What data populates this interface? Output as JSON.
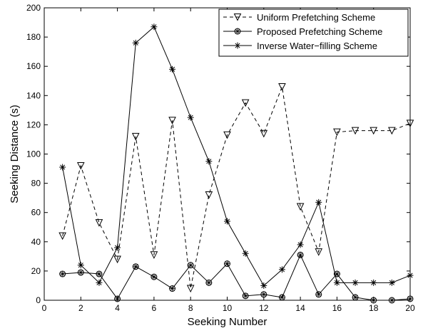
{
  "chart_data": {
    "type": "line",
    "title": "",
    "xlabel": "Seeking Number",
    "ylabel": "Seeking Distance (s)",
    "xlim": [
      0,
      20
    ],
    "ylim": [
      0,
      200
    ],
    "xticks": [
      0,
      2,
      4,
      6,
      8,
      10,
      12,
      14,
      16,
      18,
      20
    ],
    "yticks": [
      0,
      20,
      40,
      60,
      80,
      100,
      120,
      140,
      160,
      180,
      200
    ],
    "grid": false,
    "legend_position": "top-right",
    "x": [
      1,
      2,
      3,
      4,
      5,
      6,
      7,
      8,
      9,
      10,
      11,
      12,
      13,
      14,
      15,
      16,
      17,
      18,
      19,
      20
    ],
    "series": [
      {
        "name": "Uniform Prefetching Scheme",
        "marker": "triangle-down",
        "line_style": "dashed",
        "color": "#000000",
        "values": [
          44,
          92,
          53,
          28,
          112,
          31,
          123,
          8,
          72,
          113,
          135,
          114,
          146,
          64,
          33,
          115,
          116,
          116,
          116,
          121
        ]
      },
      {
        "name": "Proposed Prefetching Scheme",
        "marker": "circle-star",
        "line_style": "solid",
        "color": "#000000",
        "values": [
          18,
          19,
          18,
          1,
          23,
          16,
          8,
          24,
          12,
          25,
          3,
          4,
          2,
          31,
          4,
          18,
          2,
          0,
          0,
          1
        ]
      },
      {
        "name": "Inverse Water−filling Scheme",
        "marker": "asterisk",
        "line_style": "solid",
        "color": "#000000",
        "values": [
          91,
          24,
          12,
          36,
          176,
          187,
          158,
          125,
          95,
          54,
          32,
          10,
          21,
          38,
          67,
          12,
          12,
          12,
          12,
          17
        ]
      }
    ]
  }
}
